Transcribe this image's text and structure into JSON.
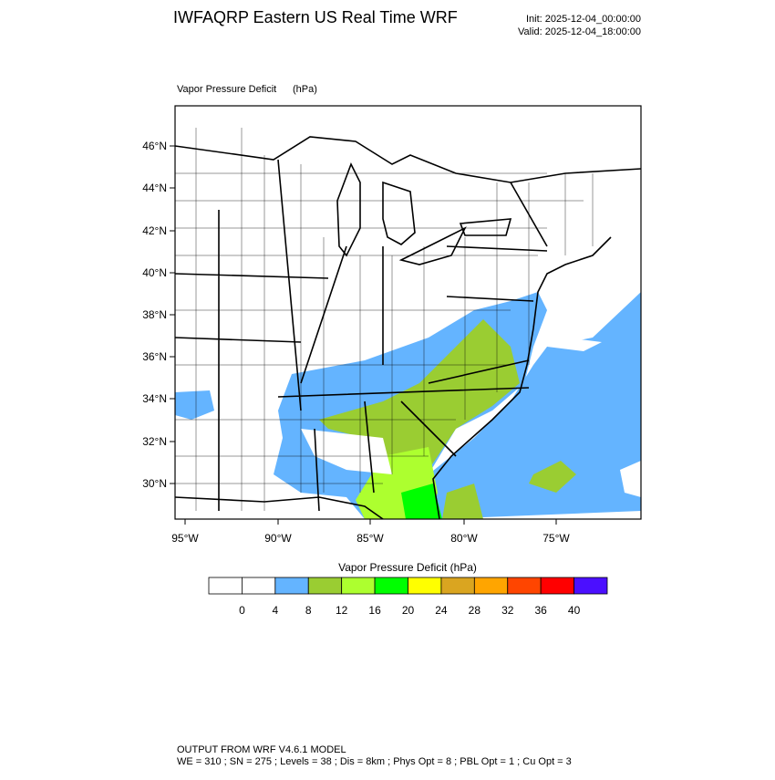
{
  "header": {
    "title": "IWFAQRP Eastern US Real Time WRF",
    "init": "Init: 2025-12-04_00:00:00",
    "valid": "Valid: 2025-12-04_18:00:00"
  },
  "map": {
    "field": "Vapor Pressure Deficit",
    "units": "(hPa)",
    "lat_labels": [
      "46°N",
      "44°N",
      "42°N",
      "40°N",
      "38°N",
      "36°N",
      "34°N",
      "32°N",
      "30°N"
    ],
    "lon_labels": [
      "95°W",
      "90°W",
      "85°W",
      "80°W",
      "75°W"
    ]
  },
  "colorbar": {
    "title": "Vapor Pressure Deficit  (hPa)",
    "labels": [
      "0",
      "4",
      "8",
      "12",
      "16",
      "20",
      "24",
      "28",
      "32",
      "36",
      "40"
    ],
    "colors": [
      "#ffffff",
      "#ffffff",
      "#64b4ff",
      "#9acd32",
      "#adff2f",
      "#00ff00",
      "#ffff00",
      "#daa520",
      "#ffa500",
      "#ff4500",
      "#ff0000",
      "#4b0fff"
    ]
  },
  "footer": {
    "line1": "OUTPUT FROM WRF V4.6.1 MODEL",
    "line2": "WE = 310 ; SN = 275 ; Levels = 38 ; Dis = 8km ; Phys Opt = 8 ; PBL Opt = 1 ; Cu Opt = 3"
  }
}
